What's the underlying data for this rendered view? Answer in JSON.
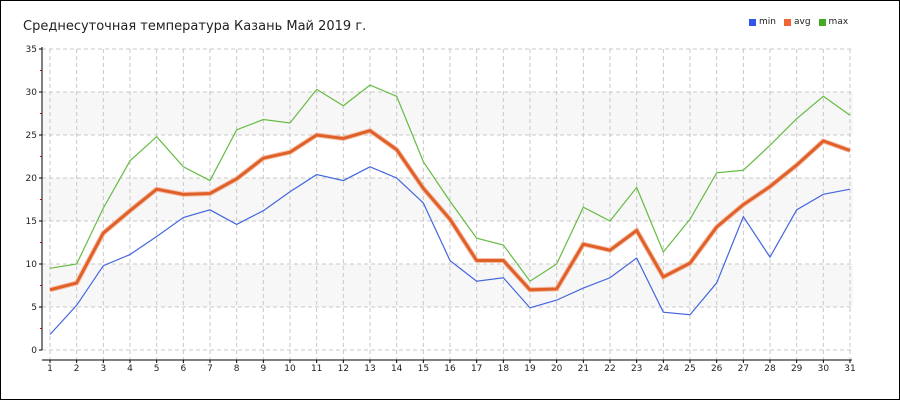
{
  "chart_data": {
    "type": "line",
    "title": "Среднесуточная температура Казань  Май 2019 г.",
    "xlabel": "",
    "ylabel": "",
    "x": [
      1,
      2,
      3,
      4,
      5,
      6,
      7,
      8,
      9,
      10,
      11,
      12,
      13,
      14,
      15,
      16,
      17,
      18,
      19,
      20,
      21,
      22,
      23,
      24,
      25,
      26,
      27,
      28,
      29,
      30,
      31
    ],
    "ylim": [
      0,
      35
    ],
    "yticks": [
      0,
      5,
      10,
      15,
      20,
      25,
      30,
      35
    ],
    "grid": true,
    "legend_position": "top-right",
    "series": [
      {
        "name": "min",
        "color": "#3355ee",
        "line": "#4466dd",
        "values": [
          1.8,
          5.2,
          9.8,
          11.1,
          13.2,
          15.4,
          16.3,
          14.6,
          16.2,
          18.4,
          20.4,
          19.7,
          21.3,
          20.0,
          17.1,
          10.4,
          8.0,
          8.4,
          4.9,
          5.8,
          7.2,
          8.4,
          10.7,
          4.4,
          4.1,
          7.8,
          15.5,
          10.8,
          16.3,
          18.1,
          18.7
        ]
      },
      {
        "name": "avg",
        "color": "#ee6633",
        "line": "#e0602a",
        "values": [
          7.0,
          7.8,
          13.6,
          16.2,
          18.7,
          18.1,
          18.2,
          19.9,
          22.3,
          23.0,
          25.0,
          24.6,
          25.5,
          23.3,
          18.8,
          15.2,
          10.4,
          10.4,
          7.0,
          7.1,
          12.3,
          11.6,
          13.9,
          8.5,
          10.1,
          14.3,
          16.9,
          19.0,
          21.5,
          24.3,
          23.2
        ]
      },
      {
        "name": "max",
        "color": "#44aa22",
        "line": "#66bb44",
        "values": [
          9.5,
          10.0,
          16.5,
          22.0,
          24.8,
          21.3,
          19.7,
          25.6,
          26.8,
          26.4,
          30.3,
          28.4,
          30.8,
          29.5,
          21.9,
          17.3,
          13.0,
          12.2,
          8.0,
          10.0,
          16.6,
          15.0,
          18.9,
          11.4,
          15.2,
          20.6,
          20.9,
          23.8,
          26.9,
          29.5,
          27.3
        ]
      }
    ]
  }
}
